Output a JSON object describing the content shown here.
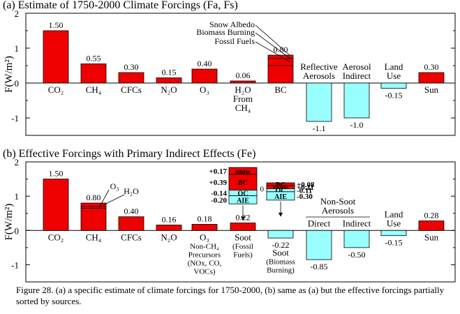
{
  "chart_data": [
    {
      "type": "bar",
      "title": "(a) Estimate of 1750-2000 Climate Forcings (Fa, Fs)",
      "ylabel": "F(W/m²)",
      "ylim": [
        -1.5,
        2
      ],
      "yticks": [
        "2",
        "1",
        "0",
        "-1"
      ],
      "colors": {
        "positive": "#ee0000",
        "negative": "#99ffff"
      },
      "bars": [
        {
          "label": [
            "CO₂"
          ],
          "value": 1.5,
          "value_label": "1.50",
          "color": "#ee0000"
        },
        {
          "label": [
            "CH₄"
          ],
          "value": 0.55,
          "value_label": "0.55",
          "color": "#ee0000"
        },
        {
          "label": [
            "CFCs"
          ],
          "value": 0.3,
          "value_label": "0.30",
          "color": "#ee0000"
        },
        {
          "label": [
            "N₂O"
          ],
          "value": 0.15,
          "value_label": "0.15",
          "color": "#ee0000"
        },
        {
          "label": [
            "O₃"
          ],
          "value": 0.4,
          "value_label": "0.40",
          "color": "#ee0000"
        },
        {
          "label": [
            "H₂O",
            "From",
            "CH₄"
          ],
          "value": 0.06,
          "value_label": "0.06",
          "color": "#ee0000"
        },
        {
          "label": [
            "BC"
          ],
          "value": 0.8,
          "value_label": "0.80",
          "color": "#ee0000",
          "stack_dividers": [
            0.5,
            0.7
          ],
          "components": [
            "Snow Albedo",
            "Biomass Burning",
            "Fossil Fuels"
          ]
        },
        {
          "label": [
            "Reflective",
            "Aerosols"
          ],
          "value": -1.1,
          "value_label": "-1.1",
          "color": "#99ffff"
        },
        {
          "label": [
            "Aerosol",
            "Indirect"
          ],
          "value": -1.0,
          "value_label": "-1.0",
          "color": "#99ffff"
        },
        {
          "label": [
            "Land",
            "Use"
          ],
          "value": -0.15,
          "value_label": "-0.15",
          "color": "#99ffff"
        },
        {
          "label": [
            "Sun"
          ],
          "value": 0.3,
          "value_label": "0.30",
          "color": "#ee0000"
        }
      ]
    },
    {
      "type": "bar",
      "title": "(b) Effective Forcings with Primary Indirect Effects (Fe)",
      "ylabel": "F(W/m²)",
      "ylim": [
        -1.5,
        2
      ],
      "yticks": [
        "2",
        "1",
        "0",
        "-1"
      ],
      "colors": {
        "positive": "#ee0000",
        "negative": "#99ffff"
      },
      "bars": [
        {
          "label": [
            "CO₂"
          ],
          "value": 1.5,
          "value_label": "1.50",
          "color": "#ee0000"
        },
        {
          "label": [
            "CH₄"
          ],
          "value": 0.8,
          "value_label": "0.80",
          "color": "#ee0000",
          "stack_dividers": [
            0.65,
            0.7
          ],
          "components": [
            "O₃",
            "H₂O"
          ]
        },
        {
          "label": [
            "CFCs"
          ],
          "value": 0.4,
          "value_label": "0.40",
          "color": "#ee0000"
        },
        {
          "label": [
            "N₂O"
          ],
          "value": 0.16,
          "value_label": "0.16",
          "color": "#ee0000"
        },
        {
          "label": [
            "O₃",
            "Non-CH₄",
            "Precursors",
            "(NOx, CO,",
            "VOCs)"
          ],
          "value": 0.18,
          "value_label": "0.18",
          "color": "#ee0000"
        },
        {
          "label": [
            "Soot",
            "(Fossil",
            "Fuels)"
          ],
          "value": 0.22,
          "value_label": "0.22",
          "color": "#ee0000"
        },
        {
          "label": [
            "Soot",
            "(Biomass",
            "Burning)"
          ],
          "value": -0.22,
          "value_label": "-0.22",
          "color": "#99ffff"
        },
        {
          "label": [
            "Direct"
          ],
          "value": -0.85,
          "value_label": "-0.85",
          "color": "#99ffff"
        },
        {
          "label": [
            "Indirect"
          ],
          "value": -0.5,
          "value_label": "-0.50",
          "color": "#99ffff"
        },
        {
          "label": [
            "Land",
            "Use"
          ],
          "value": -0.15,
          "value_label": "-0.15",
          "color": "#99ffff"
        },
        {
          "label": [
            "Sun"
          ],
          "value": 0.28,
          "value_label": "0.28",
          "color": "#ee0000"
        }
      ],
      "group_label": [
        "Non-Soot",
        "Aerosols"
      ],
      "inset_fossil": {
        "components": [
          {
            "name": "snow",
            "value": 0.17,
            "value_label": "+0.17",
            "color": "#ee0000"
          },
          {
            "name": "BC",
            "value": 0.39,
            "value_label": "+0.39",
            "color": "#ee0000"
          },
          {
            "name": "OC",
            "value": -0.14,
            "value_label": "-0.14",
            "color": "#99ffff"
          },
          {
            "name": "AIE",
            "value": -0.2,
            "value_label": "-0.20",
            "color": "#99ffff"
          }
        ]
      },
      "inset_biomass": {
        "zero_label": "0",
        "components": [
          {
            "name": "BC",
            "value": 0.08,
            "value_label": "+0.08",
            "color": "#ee0000"
          },
          {
            "name": "snow",
            "value": 0.11,
            "value_label": "+0.11",
            "color": "#ee0000"
          },
          {
            "name": "OC",
            "value": -0.11,
            "value_label": "-0.11",
            "color": "#99ffff"
          },
          {
            "name": "AIE",
            "value": -0.3,
            "value_label": "-0.30",
            "color": "#99ffff"
          }
        ]
      }
    }
  ],
  "caption": "Figure 28. (a) a specific estimate of climate forcings for 1750-2000, (b) same as (a) but the effective forcings partially sorted by sources."
}
